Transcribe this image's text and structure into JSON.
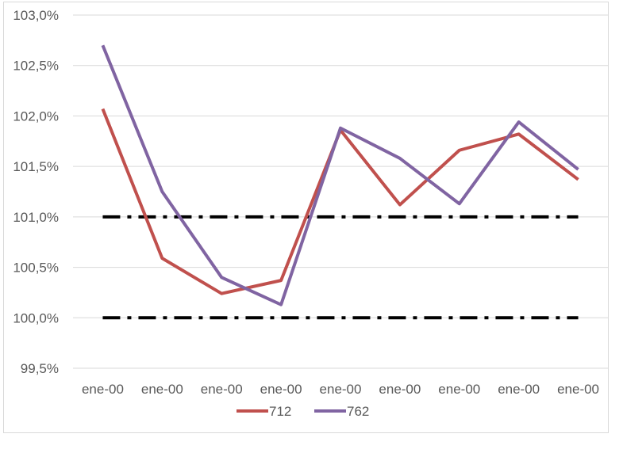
{
  "chart_data": {
    "type": "line",
    "categories": [
      "ene-00",
      "ene-00",
      "ene-00",
      "ene-00",
      "ene-00",
      "ene-00",
      "ene-00",
      "ene-00",
      "ene-00"
    ],
    "series": [
      {
        "name": "712",
        "color": "#c0504d",
        "values": [
          102.07,
          100.59,
          100.24,
          100.37,
          101.86,
          101.12,
          101.66,
          101.82,
          101.37
        ]
      },
      {
        "name": "762",
        "color": "#8064a2",
        "values": [
          102.7,
          101.25,
          100.4,
          100.13,
          101.88,
          101.58,
          101.13,
          101.94,
          101.47
        ]
      }
    ],
    "reference_lines": [
      {
        "value": 101.0,
        "color": "#000000",
        "style": "dash-dot"
      },
      {
        "value": 100.0,
        "color": "#000000",
        "style": "dash-dot"
      }
    ],
    "y_ticks": [
      "99,5%",
      "100,0%",
      "100,5%",
      "101,0%",
      "101,5%",
      "102,0%",
      "102,5%",
      "103,0%"
    ],
    "y_tick_values": [
      99.5,
      100.0,
      100.5,
      101.0,
      101.5,
      102.0,
      102.5,
      103.0
    ],
    "ylim": [
      99.5,
      103.0
    ],
    "grid": true,
    "legend_position": "bottom",
    "title": "",
    "xlabel": "",
    "ylabel": ""
  }
}
